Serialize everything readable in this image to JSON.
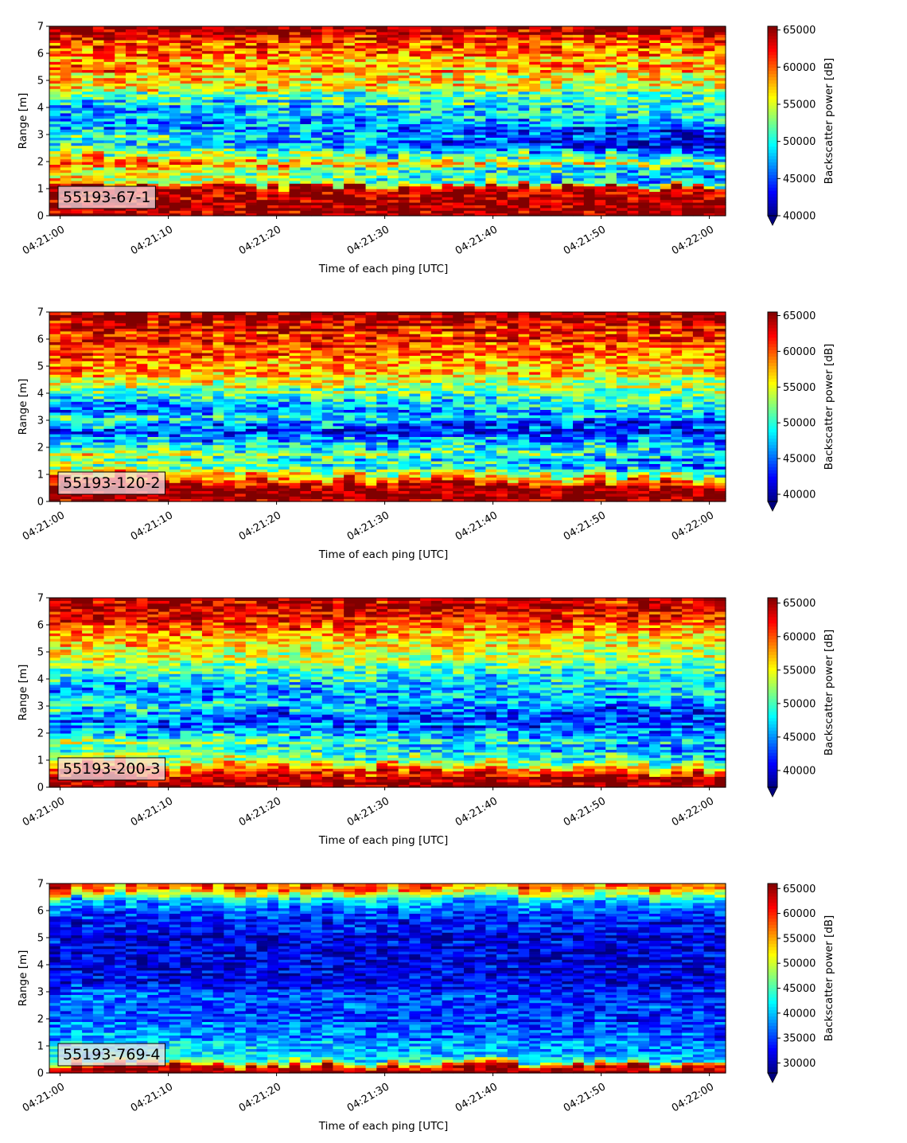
{
  "chart_data": [
    {
      "type": "heatmap",
      "panel_label": "55193-67-1",
      "xlabel": "Time of each ping [UTC]",
      "ylabel": "Range [m]",
      "colorbar_label": "Backscatter power [dB]",
      "x_ticks": [
        "04:21:00",
        "04:21:10",
        "04:21:20",
        "04:21:30",
        "04:21:40",
        "04:21:50",
        "04:22:00"
      ],
      "y_ticks": [
        0,
        1,
        2,
        3,
        4,
        5,
        6,
        7
      ],
      "ylim": [
        0,
        7
      ],
      "xlim_seconds": [
        -1,
        61.5
      ],
      "colorbar_ticks": [
        40000,
        45000,
        50000,
        55000,
        60000,
        65000
      ],
      "clim": [
        40000,
        65500
      ],
      "colormap": "jet",
      "colorbar_extend": "min",
      "profile_range_m": [
        0,
        0.25,
        0.5,
        0.8,
        1.0,
        1.2,
        1.5,
        1.8,
        2.0,
        2.4,
        2.7,
        3.0,
        3.3,
        3.6,
        4.0,
        4.5,
        5.0,
        5.5,
        6.0,
        6.4,
        6.8,
        7.0
      ],
      "profile_start": [
        65000,
        65000,
        65000,
        65000,
        65000,
        58000,
        55000,
        59000,
        60000,
        52000,
        50000,
        52000,
        47000,
        47000,
        48000,
        53000,
        58000,
        59000,
        60000,
        62000,
        64000,
        65000
      ],
      "profile_end": [
        65000,
        65000,
        65000,
        65000,
        65000,
        50000,
        45000,
        48000,
        55000,
        43000,
        42000,
        42000,
        46000,
        50000,
        50000,
        52000,
        55000,
        57000,
        59000,
        61000,
        63000,
        65000
      ]
    },
    {
      "type": "heatmap",
      "panel_label": "55193-120-2",
      "xlabel": "Time of each ping [UTC]",
      "ylabel": "Range [m]",
      "colorbar_label": "Backscatter power [dB]",
      "x_ticks": [
        "04:21:00",
        "04:21:10",
        "04:21:20",
        "04:21:30",
        "04:21:40",
        "04:21:50",
        "04:22:00"
      ],
      "y_ticks": [
        0,
        1,
        2,
        3,
        4,
        5,
        6,
        7
      ],
      "ylim": [
        0,
        7
      ],
      "xlim_seconds": [
        -1,
        61.5
      ],
      "colorbar_ticks": [
        40000,
        45000,
        50000,
        55000,
        60000,
        65000
      ],
      "clim": [
        39000,
        65500
      ],
      "colormap": "jet",
      "colorbar_extend": "min",
      "profile_range_m": [
        0,
        0.25,
        0.5,
        0.8,
        1.0,
        1.2,
        1.5,
        1.8,
        2.0,
        2.4,
        2.7,
        3.0,
        3.3,
        3.6,
        4.0,
        4.5,
        5.0,
        5.5,
        6.0,
        6.4,
        6.8,
        7.0
      ],
      "profile_start": [
        65000,
        65000,
        65000,
        62000,
        60000,
        55000,
        52000,
        55000,
        50000,
        46000,
        44000,
        52000,
        46000,
        44000,
        50000,
        56000,
        59000,
        60000,
        62000,
        63000,
        64000,
        65000
      ],
      "profile_end": [
        65000,
        65000,
        65000,
        58000,
        50000,
        46000,
        45000,
        50000,
        48000,
        44000,
        43000,
        45000,
        48000,
        50000,
        52000,
        54000,
        57000,
        58000,
        60000,
        62000,
        64000,
        65000
      ]
    },
    {
      "type": "heatmap",
      "panel_label": "55193-200-3",
      "xlabel": "Time of each ping [UTC]",
      "ylabel": "Range [m]",
      "colorbar_label": "Backscatter power [dB]",
      "x_ticks": [
        "04:21:00",
        "04:21:10",
        "04:21:20",
        "04:21:30",
        "04:21:40",
        "04:21:50",
        "04:22:00"
      ],
      "y_ticks": [
        0,
        1,
        2,
        3,
        4,
        5,
        6,
        7
      ],
      "ylim": [
        0,
        7
      ],
      "xlim_seconds": [
        -1,
        61.5
      ],
      "colorbar_ticks": [
        40000,
        45000,
        50000,
        55000,
        60000,
        65000
      ],
      "clim": [
        37500,
        65800
      ],
      "colormap": "jet",
      "colorbar_extend": "min",
      "profile_range_m": [
        0,
        0.25,
        0.5,
        0.8,
        1.0,
        1.2,
        1.5,
        1.8,
        2.0,
        2.4,
        2.7,
        3.0,
        3.3,
        3.6,
        4.0,
        4.5,
        5.0,
        5.5,
        6.0,
        6.4,
        6.8,
        7.0
      ],
      "profile_start": [
        65000,
        65000,
        64000,
        60000,
        56000,
        52000,
        50000,
        54000,
        46000,
        44000,
        44000,
        52000,
        45000,
        44000,
        48000,
        52000,
        55000,
        58000,
        61000,
        63000,
        64000,
        65000
      ],
      "profile_end": [
        65000,
        65000,
        63000,
        55000,
        48000,
        46000,
        44000,
        46000,
        44000,
        42000,
        42000,
        43000,
        46000,
        48000,
        48000,
        50000,
        54000,
        56000,
        58000,
        61000,
        63000,
        65000
      ]
    },
    {
      "type": "heatmap",
      "panel_label": "55193-769-4",
      "xlabel": "Time of each ping [UTC]",
      "ylabel": "Range [m]",
      "colorbar_label": "Backscatter power [dB]",
      "x_ticks": [
        "04:21:00",
        "04:21:10",
        "04:21:20",
        "04:21:30",
        "04:21:40",
        "04:21:50",
        "04:22:00"
      ],
      "y_ticks": [
        0,
        1,
        2,
        3,
        4,
        5,
        6,
        7
      ],
      "ylim": [
        0,
        7
      ],
      "xlim_seconds": [
        -1,
        61.5
      ],
      "colorbar_ticks": [
        30000,
        35000,
        40000,
        45000,
        50000,
        55000,
        60000,
        65000
      ],
      "clim": [
        28000,
        66000
      ],
      "colormap": "jet",
      "colorbar_extend": "min",
      "profile_range_m": [
        0,
        0.2,
        0.3,
        0.5,
        0.8,
        1.0,
        1.2,
        1.5,
        1.8,
        2.0,
        2.4,
        2.7,
        3.0,
        3.3,
        3.6,
        4.0,
        4.5,
        5.0,
        5.5,
        6.0,
        6.4,
        6.8,
        7.0
      ],
      "profile_start": [
        65000,
        65000,
        60000,
        43000,
        42000,
        41000,
        40000,
        38000,
        37000,
        36000,
        34000,
        38000,
        36000,
        33000,
        32000,
        32000,
        32000,
        32000,
        33000,
        35000,
        40000,
        55000,
        62000
      ],
      "profile_end": [
        65000,
        65000,
        60000,
        40000,
        38000,
        37000,
        36000,
        35000,
        34000,
        34000,
        33000,
        35000,
        34000,
        33000,
        32000,
        32000,
        31000,
        32000,
        33000,
        35000,
        40000,
        52000,
        60000
      ]
    }
  ]
}
